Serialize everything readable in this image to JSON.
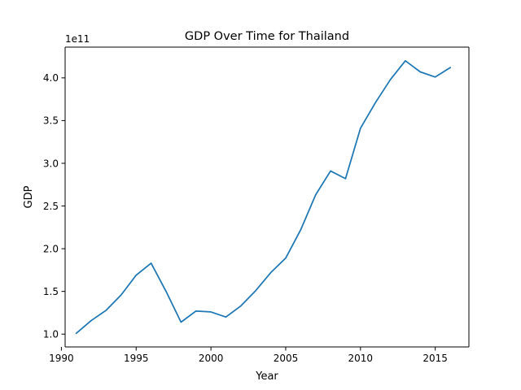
{
  "chart_data": {
    "type": "line",
    "title": "GDP Over Time for Thailand",
    "xlabel": "Year",
    "ylabel": "GDP",
    "y_offset_text": "1e11",
    "xlim": [
      1990.25,
      2017.25
    ],
    "ylim": [
      0.85,
      4.36
    ],
    "y_scale_factor": 100000000000.0,
    "xticks": [
      1990,
      1995,
      2000,
      2005,
      2010,
      2015
    ],
    "xtick_labels": [
      "1990",
      "1995",
      "2000",
      "2005",
      "2010",
      "2015"
    ],
    "yticks": [
      1.0,
      1.5,
      2.0,
      2.5,
      3.0,
      3.5,
      4.0
    ],
    "ytick_labels": [
      "1.0",
      "1.5",
      "2.0",
      "2.5",
      "3.0",
      "3.5",
      "4.0"
    ],
    "grid": false,
    "color": "#1f77b4",
    "series": [
      {
        "x": [
          1991,
          1992,
          1993,
          1994,
          1995,
          1996,
          1997,
          1998,
          1999,
          2000,
          2001,
          2002,
          2003,
          2004,
          2005,
          2006,
          2007,
          2008,
          2009,
          2010,
          2011,
          2012,
          2013,
          2014,
          2015,
          2016
        ],
        "y": [
          1.01,
          1.16,
          1.28,
          1.46,
          1.69,
          1.83,
          1.5,
          1.14,
          1.27,
          1.26,
          1.2,
          1.33,
          1.51,
          1.72,
          1.89,
          2.22,
          2.63,
          2.91,
          2.82,
          3.41,
          3.71,
          3.98,
          4.2,
          4.07,
          4.01,
          4.12
        ]
      }
    ]
  }
}
